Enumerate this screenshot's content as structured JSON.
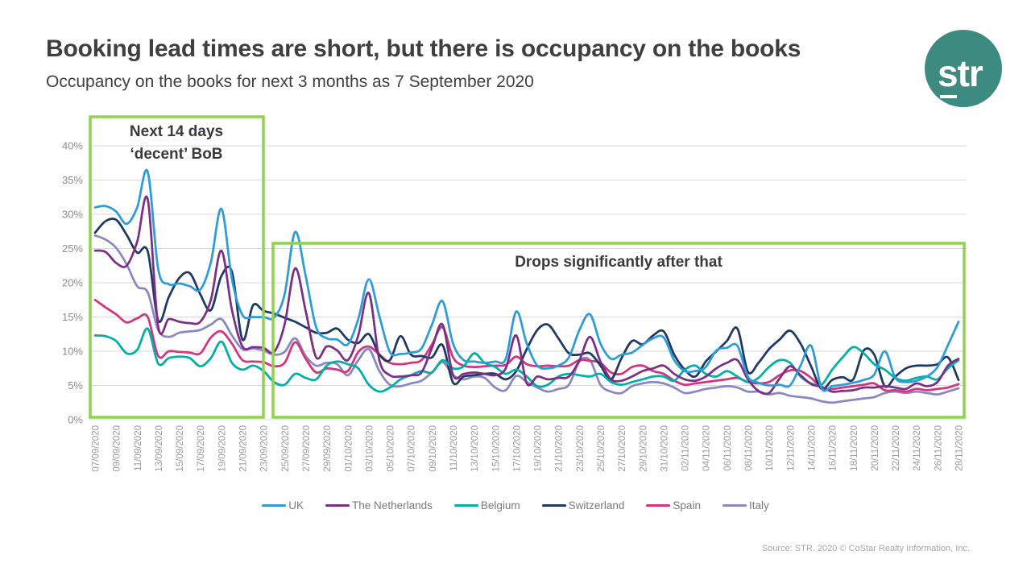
{
  "header": {
    "title": "Booking lead times are short, but there is occupancy on the books",
    "subtitle": "Occupancy on the books for next 3 months as 7 September 2020"
  },
  "logo": {
    "text": "str",
    "bg_color": "#3D8B80",
    "text_color": "#ffffff"
  },
  "source": "Source: STR. 2020 © CoStar Realty Information, Inc.",
  "annotations": {
    "box1_line1": "Next 14 days",
    "box1_line2": "‘decent’ BoB",
    "box2_text": "Drops significantly after that",
    "box_color": "#92D050"
  },
  "chart_data": {
    "type": "line",
    "title": "Booking lead times are short, but there is occupancy on the books",
    "subtitle": "Occupancy on the books for next 3 months as 7 September 2020",
    "xlabel": "",
    "ylabel": "",
    "ylim": [
      0,
      40
    ],
    "grid": true,
    "legend_position": "bottom",
    "frequency": "daily",
    "x_start_date": "07/09/2020",
    "x_end_date": "28/11/2020",
    "points_per_tick": 2,
    "y_tick_labels": [
      "0%",
      "5%",
      "10%",
      "15%",
      "20%",
      "25%",
      "30%",
      "35%",
      "40%"
    ],
    "x_tick_labels": [
      "07/09/2020",
      "09/09/2020",
      "11/09/2020",
      "13/09/2020",
      "15/09/2020",
      "17/09/2020",
      "19/09/2020",
      "21/09/2020",
      "23/09/2020",
      "25/09/2020",
      "27/09/2020",
      "29/09/2020",
      "01/10/2020",
      "03/10/2020",
      "05/10/2020",
      "07/10/2020",
      "09/10/2020",
      "11/10/2020",
      "13/10/2020",
      "15/10/2020",
      "17/10/2020",
      "19/10/2020",
      "21/10/2020",
      "23/10/2020",
      "25/10/2020",
      "27/10/2020",
      "29/10/2020",
      "31/10/2020",
      "02/11/2020",
      "04/11/2020",
      "06/11/2020",
      "08/11/2020",
      "10/11/2020",
      "12/11/2020",
      "14/11/2020",
      "16/11/2020",
      "18/11/2020",
      "20/11/2020",
      "22/11/2020",
      "24/11/2020",
      "26/11/2020",
      "28/11/2020"
    ],
    "series": [
      {
        "name": "UK",
        "color": "#2E9CD6",
        "values": [
          31.0,
          31.2,
          30.4,
          28.6,
          31.0,
          36.2,
          22.0,
          19.8,
          19.9,
          19.5,
          19.0,
          23.0,
          30.8,
          20.5,
          15.3,
          15.0,
          15.0,
          14.9,
          18.3,
          27.4,
          21.0,
          13.5,
          11.9,
          11.7,
          11.0,
          14.7,
          20.5,
          15.1,
          9.9,
          9.6,
          9.8,
          10.4,
          13.9,
          17.3,
          11.1,
          8.7,
          8.5,
          8.3,
          8.5,
          8.9,
          15.8,
          11.1,
          7.9,
          7.5,
          7.9,
          9.1,
          13.1,
          15.4,
          11.1,
          8.9,
          9.5,
          9.8,
          10.9,
          11.9,
          12.0,
          8.7,
          7.1,
          7.1,
          7.7,
          10.1,
          10.5,
          10.8,
          6.3,
          5.4,
          5.0,
          5.1,
          5.0,
          7.9,
          10.8,
          4.6,
          4.9,
          5.1,
          5.4,
          5.8,
          6.6,
          10.0,
          6.1,
          5.5,
          5.7,
          6.3,
          7.7,
          10.9,
          14.3
        ]
      },
      {
        "name": "The Netherlands",
        "color": "#7B2F85",
        "values": [
          24.7,
          24.5,
          22.9,
          22.5,
          26.0,
          32.2,
          13.6,
          14.7,
          14.3,
          14.1,
          14.3,
          17.5,
          24.7,
          16.0,
          10.7,
          10.6,
          10.5,
          9.9,
          13.9,
          22.1,
          15.9,
          9.1,
          10.7,
          10.1,
          8.7,
          12.3,
          18.5,
          8.7,
          6.5,
          6.3,
          6.5,
          6.9,
          10.5,
          13.9,
          6.5,
          6.7,
          6.9,
          6.7,
          6.5,
          7.5,
          12.3,
          5.3,
          6.3,
          5.9,
          6.1,
          6.3,
          8.7,
          12.1,
          8.5,
          5.9,
          5.7,
          6.3,
          7.1,
          7.5,
          7.9,
          6.7,
          5.9,
          5.7,
          6.3,
          7.5,
          8.3,
          8.7,
          5.9,
          4.2,
          3.9,
          6.0,
          7.8,
          6.5,
          5.2,
          4.8,
          4.1,
          4.2,
          4.3,
          4.7,
          4.7,
          4.9,
          4.7,
          4.5,
          5.3,
          4.9,
          5.5,
          7.9,
          8.9
        ]
      },
      {
        "name": "Belgium",
        "color": "#00AFA6",
        "values": [
          12.3,
          12.2,
          11.5,
          9.7,
          10.2,
          13.3,
          8.2,
          9.0,
          9.2,
          9.0,
          7.8,
          9.0,
          11.4,
          8.3,
          7.3,
          7.9,
          7.1,
          5.5,
          5.1,
          6.7,
          6.1,
          5.9,
          7.9,
          8.5,
          8.1,
          7.5,
          5.1,
          4.1,
          4.7,
          5.9,
          6.5,
          7.1,
          6.9,
          8.7,
          7.5,
          7.8,
          9.7,
          8.3,
          7.7,
          6.7,
          7.3,
          6.3,
          4.9,
          5.1,
          6.3,
          6.7,
          6.5,
          6.3,
          6.7,
          5.5,
          5.1,
          5.5,
          5.9,
          6.3,
          6.3,
          5.7,
          7.3,
          7.9,
          6.7,
          6.3,
          7.1,
          6.3,
          5.5,
          6.1,
          7.7,
          8.7,
          8.3,
          6.3,
          5.3,
          5.1,
          7.3,
          9.1,
          10.6,
          9.7,
          8.1,
          7.3,
          6.1,
          5.7,
          6.1,
          6.3,
          5.9,
          7.5,
          8.7
        ]
      },
      {
        "name": "Switzerland",
        "color": "#1F3864",
        "values": [
          27.3,
          29.0,
          29.2,
          27.0,
          24.4,
          24.6,
          14.5,
          17.9,
          20.7,
          21.4,
          18.3,
          16.0,
          21.0,
          21.6,
          11.7,
          16.7,
          15.9,
          15.5,
          14.9,
          14.3,
          13.5,
          12.7,
          12.7,
          13.3,
          11.7,
          11.2,
          12.5,
          9.5,
          8.7,
          12.2,
          9.5,
          9.3,
          9.1,
          10.9,
          5.4,
          6.3,
          6.5,
          6.7,
          6.7,
          5.9,
          7.1,
          10.3,
          13.1,
          13.9,
          11.9,
          9.7,
          9.5,
          9.7,
          7.9,
          5.9,
          9.0,
          11.5,
          11.0,
          12.3,
          12.9,
          9.5,
          7.3,
          6.3,
          8.5,
          10.0,
          11.5,
          13.3,
          7.0,
          8.3,
          10.3,
          11.7,
          13.0,
          11.1,
          7.8,
          4.5,
          5.8,
          6.2,
          5.9,
          10.1,
          9.5,
          4.9,
          6.3,
          7.5,
          7.9,
          7.9,
          8.1,
          9.1,
          5.8
        ]
      },
      {
        "name": "Spain",
        "color": "#D2357D",
        "values": [
          17.5,
          16.4,
          15.4,
          14.2,
          14.8,
          15.0,
          9.3,
          10.0,
          9.9,
          9.8,
          9.7,
          12.0,
          12.9,
          11.1,
          8.7,
          8.5,
          8.4,
          7.8,
          8.3,
          11.3,
          8.9,
          6.9,
          7.5,
          7.3,
          7.1,
          9.9,
          10.7,
          9.5,
          8.3,
          8.1,
          8.3,
          8.7,
          11.0,
          13.5,
          9.1,
          7.9,
          7.7,
          7.8,
          7.9,
          8.0,
          9.2,
          8.1,
          7.8,
          7.9,
          7.8,
          7.9,
          8.7,
          8.6,
          8.3,
          6.9,
          6.7,
          7.7,
          7.9,
          7.1,
          6.7,
          5.7,
          5.1,
          5.3,
          5.5,
          5.7,
          5.9,
          6.1,
          5.5,
          5.3,
          5.5,
          6.5,
          7.2,
          7.1,
          6.1,
          4.7,
          4.5,
          4.7,
          4.9,
          5.1,
          5.3,
          4.3,
          4.3,
          4.1,
          4.5,
          4.3,
          4.5,
          4.7,
          5.2
        ]
      },
      {
        "name": "Italy",
        "color": "#8A88C2",
        "values": [
          26.9,
          26.3,
          25.1,
          22.7,
          19.5,
          18.6,
          13.1,
          12.1,
          12.7,
          12.9,
          13.1,
          13.9,
          14.7,
          12.3,
          10.3,
          10.4,
          10.1,
          9.5,
          9.9,
          11.9,
          9.3,
          7.9,
          8.3,
          8.1,
          6.5,
          8.7,
          10.3,
          7.1,
          5.1,
          4.9,
          5.3,
          5.7,
          6.9,
          8.4,
          6.5,
          5.9,
          6.3,
          6.1,
          4.7,
          4.3,
          6.4,
          5.5,
          4.7,
          4.1,
          4.5,
          5.1,
          8.5,
          8.7,
          5.1,
          4.1,
          3.9,
          4.9,
          5.3,
          5.5,
          5.3,
          4.7,
          3.9,
          4.1,
          4.5,
          4.7,
          4.9,
          4.7,
          4.1,
          4.1,
          3.7,
          3.9,
          3.5,
          3.3,
          3.1,
          2.7,
          2.5,
          2.7,
          2.9,
          3.1,
          3.3,
          3.9,
          4.1,
          3.9,
          4.1,
          3.9,
          3.7,
          4.1,
          4.6
        ]
      }
    ]
  }
}
